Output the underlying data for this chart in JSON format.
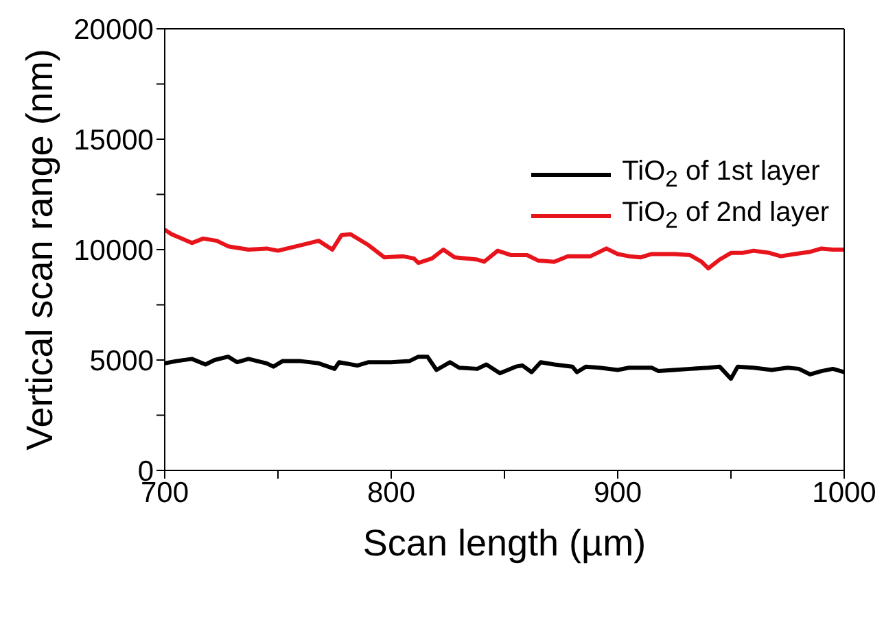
{
  "chart_data": {
    "type": "line",
    "xlabel": "Scan length (µm)",
    "ylabel": "Vertical scan range (nm)",
    "xlim": [
      700,
      1000
    ],
    "xticks": [
      700,
      {
        "value": 750,
        "label": null
      },
      800,
      {
        "value": 850,
        "label": null
      },
      900,
      {
        "value": 950,
        "label": null
      },
      1000
    ],
    "ylim": [
      0,
      20000
    ],
    "yticks": [
      0,
      {
        "value": 2500,
        "label": null
      },
      5000,
      {
        "value": 7500,
        "label": null
      },
      10000,
      {
        "value": 12500,
        "label": null
      },
      15000,
      {
        "value": 17500,
        "label": null
      },
      20000
    ],
    "legend": "right",
    "marker": "none",
    "line_style": "solid",
    "series": [
      {
        "name": "TiO$_{2}$ of 1st layer",
        "color": "#000000",
        "x": [
          700,
          705,
          712,
          718,
          722,
          728,
          732,
          737,
          745,
          748,
          752,
          760,
          768,
          775,
          777,
          785,
          790,
          800,
          808,
          812,
          816,
          820,
          826,
          830,
          838,
          842,
          848,
          855,
          858,
          862,
          866,
          872,
          880,
          882,
          886,
          892,
          900,
          905,
          915,
          918,
          925,
          932,
          940,
          945,
          950,
          953,
          960,
          968,
          975,
          980,
          985,
          990,
          995,
          1000
        ],
        "values": [
          4850,
          4950,
          5050,
          4800,
          5000,
          5150,
          4900,
          5050,
          4850,
          4700,
          4950,
          4950,
          4850,
          4600,
          4900,
          4750,
          4900,
          4900,
          4950,
          5150,
          5150,
          4550,
          4900,
          4650,
          4600,
          4800,
          4400,
          4700,
          4750,
          4450,
          4900,
          4800,
          4700,
          4450,
          4700,
          4650,
          4550,
          4650,
          4650,
          4500,
          4550,
          4600,
          4650,
          4700,
          4150,
          4700,
          4650,
          4550,
          4650,
          4600,
          4350,
          4500,
          4600,
          4450
        ]
      },
      {
        "name": "TiO$_{2}$ of 2nd layer",
        "color": "#e8141c",
        "x": [
          700,
          703,
          712,
          717,
          723,
          728,
          737,
          745,
          750,
          760,
          768,
          774,
          778,
          782,
          790,
          797,
          805,
          810,
          812,
          818,
          823,
          828,
          838,
          841,
          847,
          853,
          860,
          865,
          872,
          878,
          888,
          895,
          900,
          905,
          910,
          915,
          925,
          932,
          937,
          940,
          945,
          950,
          955,
          960,
          967,
          972,
          978,
          985,
          990,
          995,
          1000
        ],
        "values": [
          10900,
          10700,
          10300,
          10500,
          10400,
          10150,
          10000,
          10050,
          9950,
          10200,
          10400,
          10000,
          10650,
          10700,
          10200,
          9650,
          9700,
          9600,
          9400,
          9600,
          10000,
          9650,
          9550,
          9450,
          9950,
          9750,
          9750,
          9500,
          9450,
          9700,
          9700,
          10050,
          9800,
          9700,
          9650,
          9800,
          9800,
          9750,
          9450,
          9150,
          9550,
          9850,
          9850,
          9950,
          9850,
          9700,
          9800,
          9900,
          10050,
          10000,
          10000
        ]
      }
    ]
  }
}
